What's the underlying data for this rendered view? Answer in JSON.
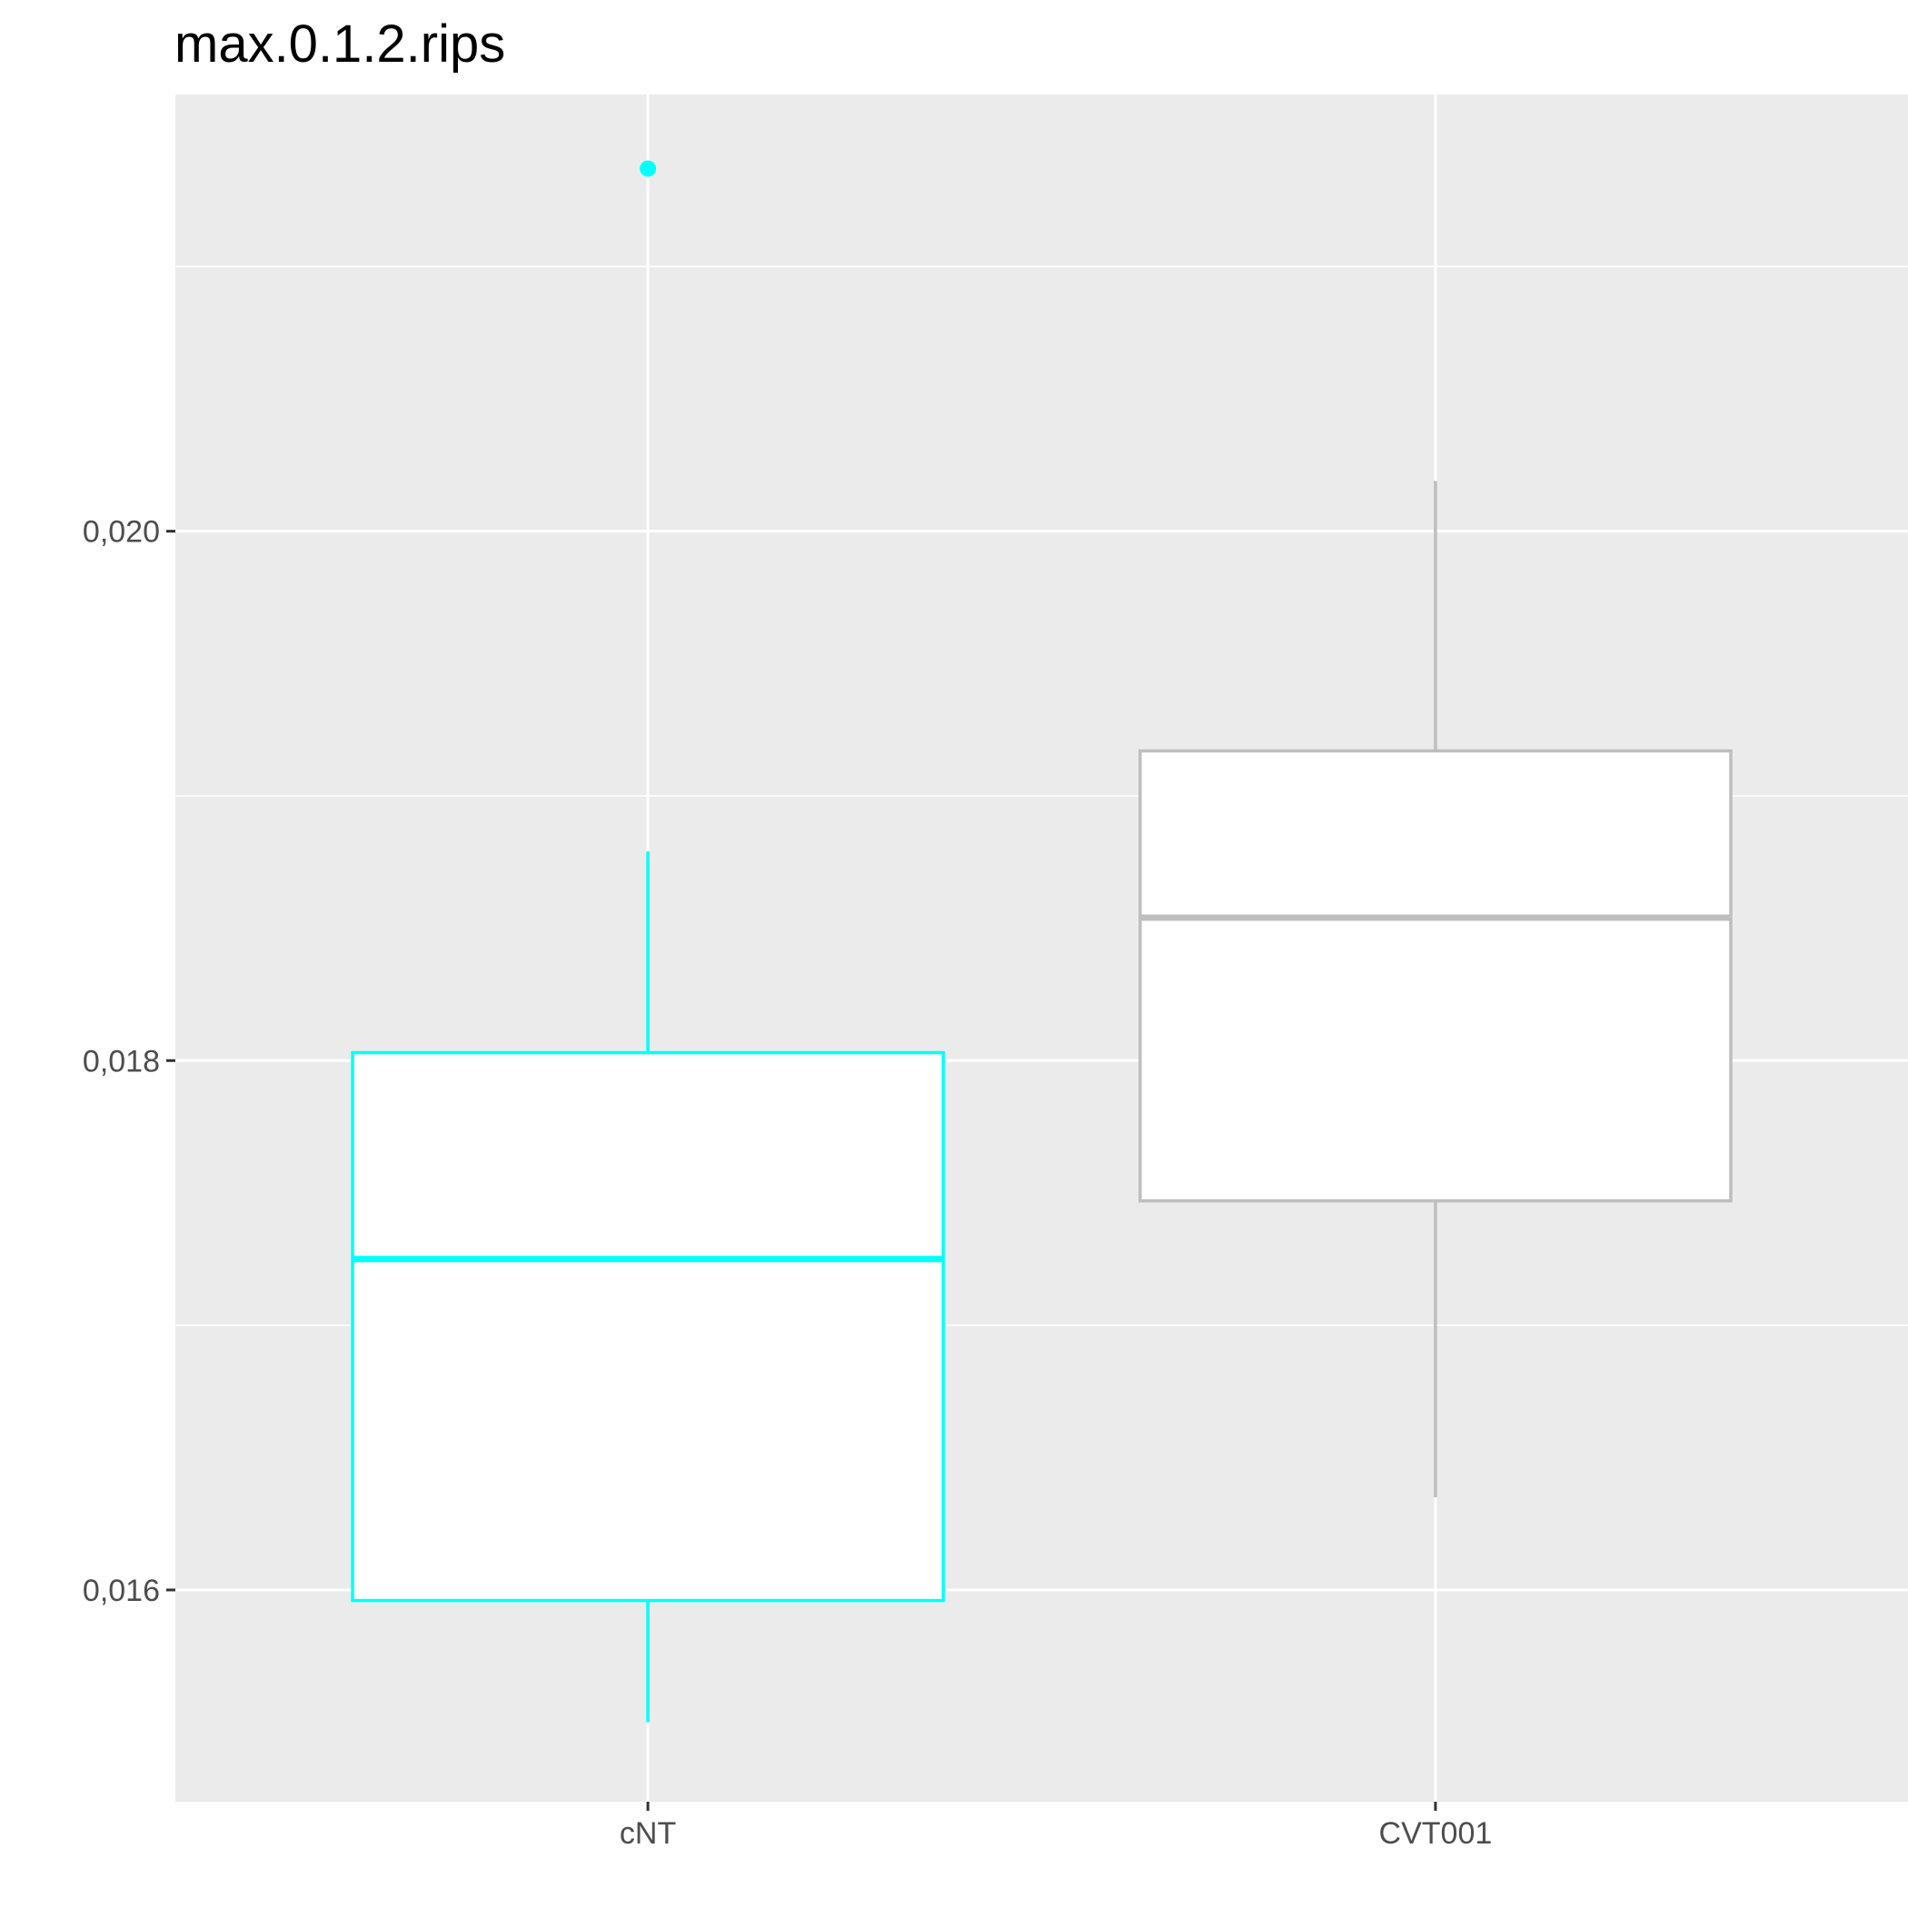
{
  "chart_data": {
    "type": "boxplot",
    "title": "max.0.1.2.rips",
    "xlabel": "",
    "ylabel": "",
    "categories": [
      "cNT",
      "CVT001"
    ],
    "y_ticks": [
      0.016,
      0.018,
      0.02
    ],
    "y_tick_labels": [
      "0,016",
      "0,018",
      "0,020"
    ],
    "ylim": [
      0.0152,
      0.02165
    ],
    "grid": true,
    "legend": "none",
    "series": [
      {
        "category": "cNT",
        "color": "#00FFFF",
        "whisker_low": 0.0155,
        "q1": 0.01596,
        "median": 0.01725,
        "q3": 0.01803,
        "whisker_high": 0.01879,
        "outliers": [
          0.02137
        ]
      },
      {
        "category": "CVT001",
        "color": "#BEBEBE",
        "whisker_low": 0.01635,
        "q1": 0.01747,
        "median": 0.01854,
        "q3": 0.01917,
        "whisker_high": 0.02019,
        "outliers": []
      }
    ],
    "panel_background": "#EBEBEB",
    "gridline_color": "#FFFFFF"
  }
}
